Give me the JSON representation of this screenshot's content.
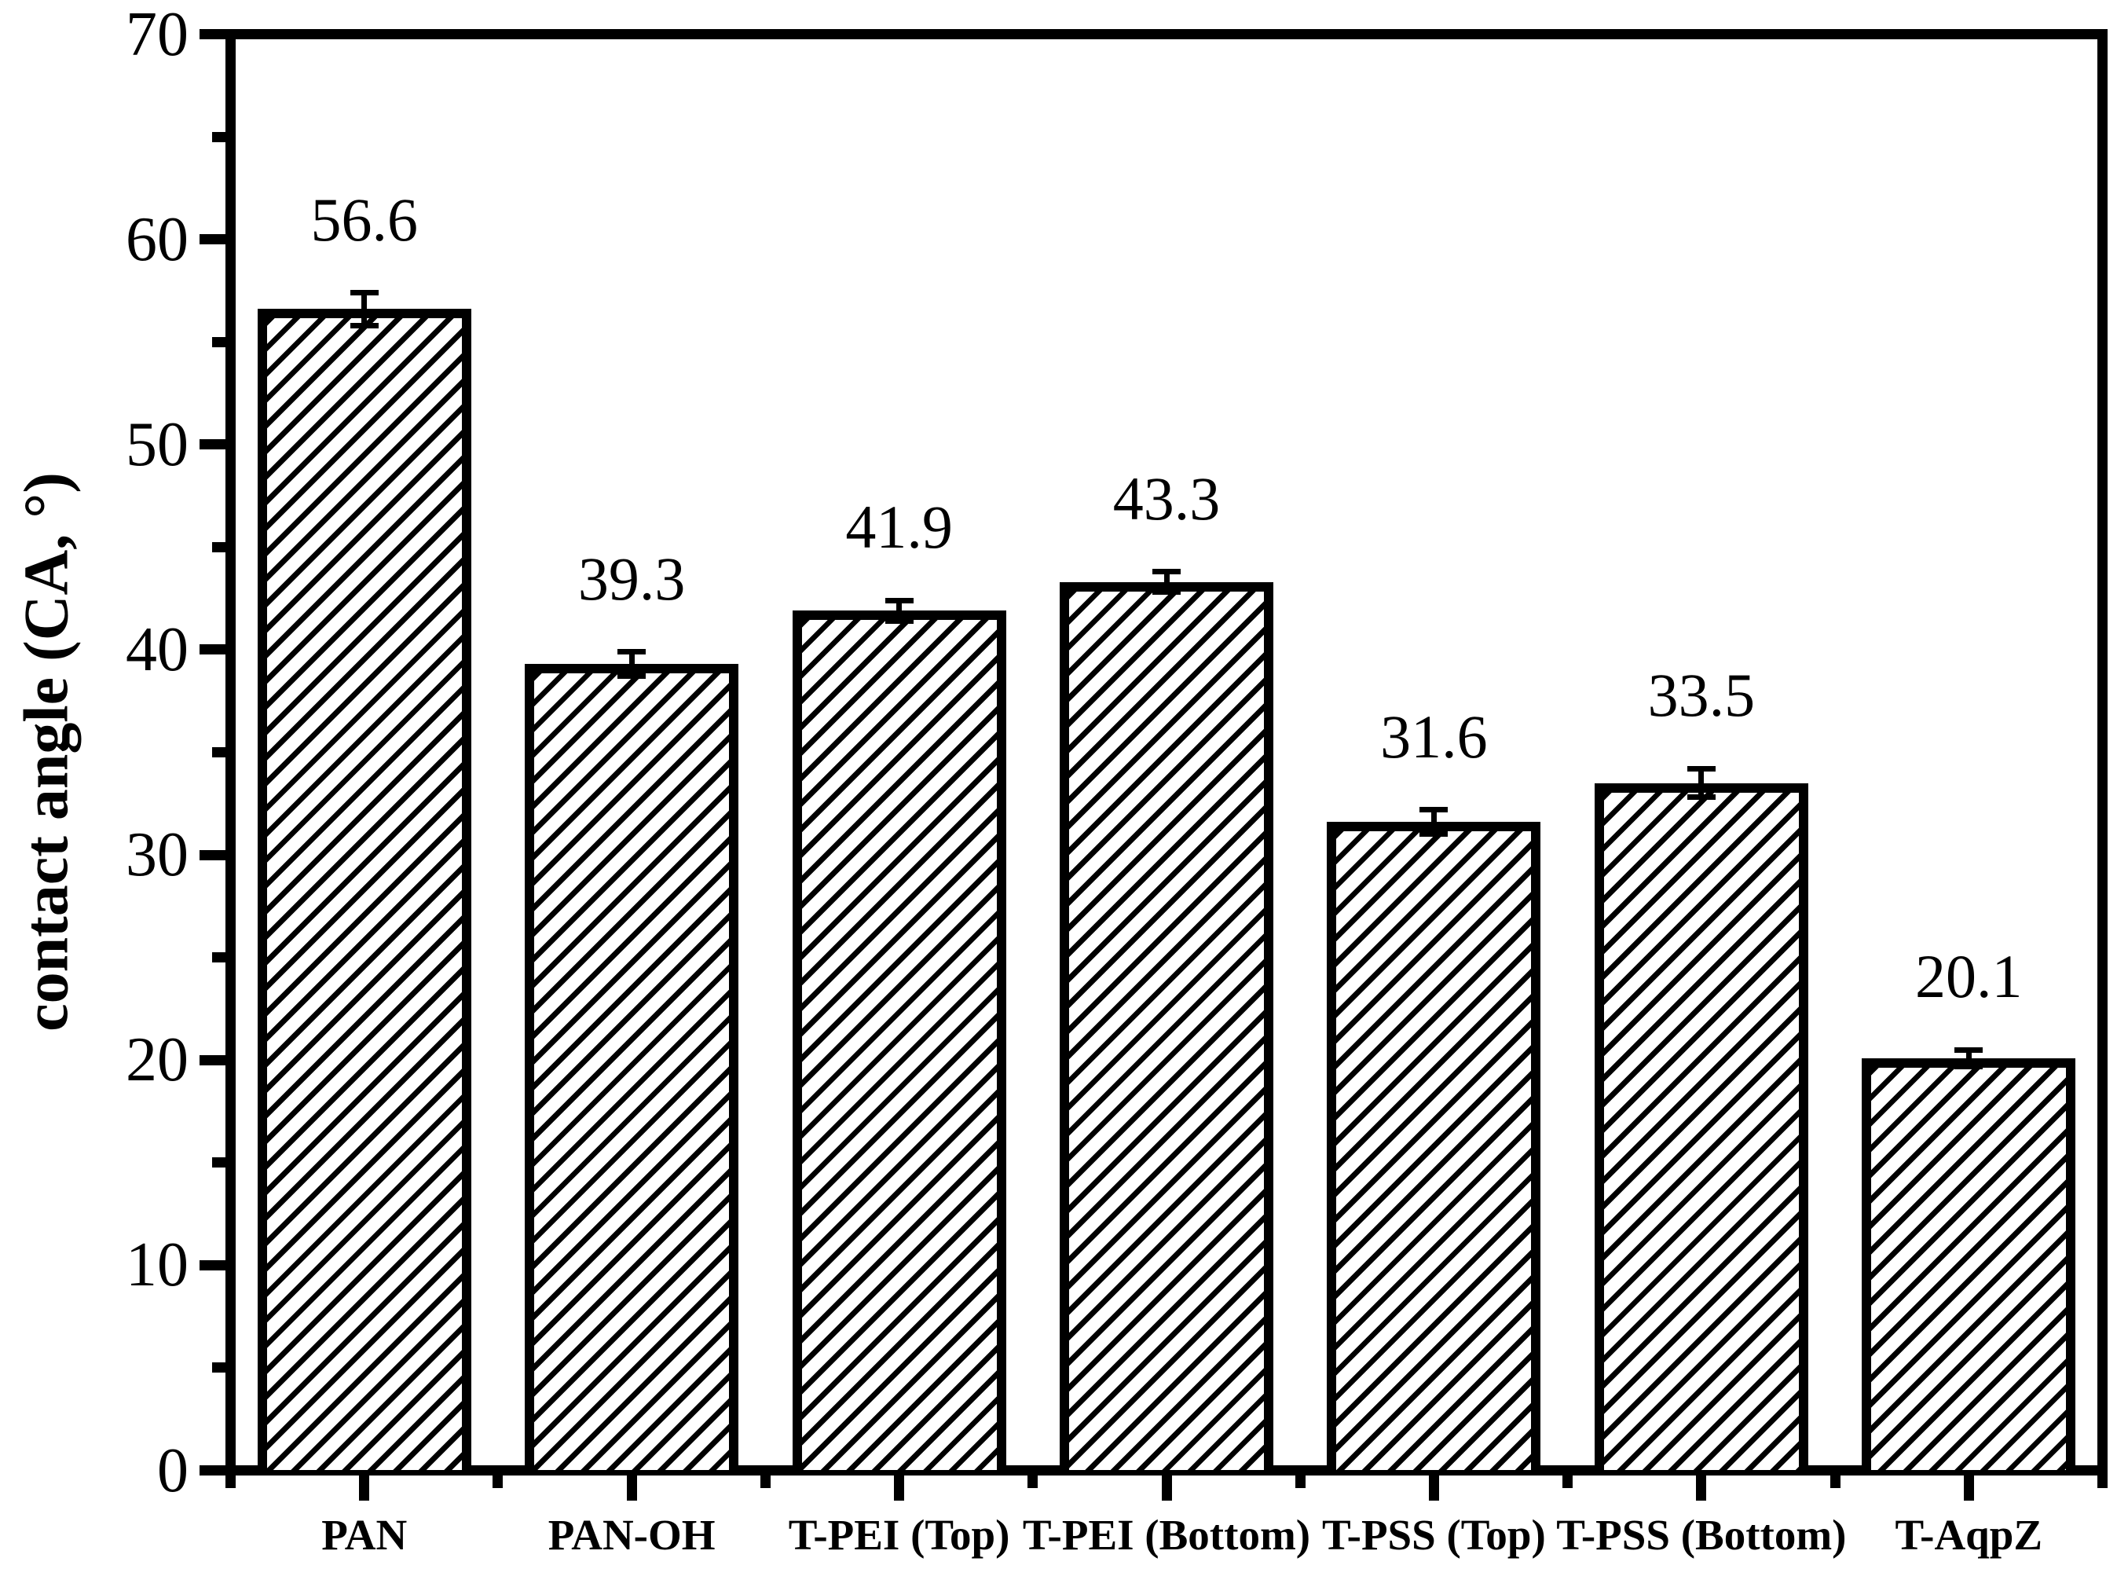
{
  "figure": {
    "background_color": "#ffffff",
    "frame_color": "#000000",
    "title": ""
  },
  "chart_data": {
    "type": "bar",
    "title": "",
    "ylabel": "contact angle (CA, °)",
    "xlabel": "",
    "categories": [
      "PAN",
      "PAN-OH",
      "T-PEI（Top）",
      "T-PEI（Bottom）",
      "T-PSS（Top）",
      "T-PSS（Bottom）",
      "T-AqpZ"
    ],
    "values": [
      56.6,
      39.3,
      41.9,
      43.3,
      31.6,
      33.5,
      20.1
    ],
    "value_labels": [
      "56.6",
      "39.3",
      "41.9",
      "43.3",
      "31.6",
      "33.5",
      "20.1"
    ],
    "errors": [
      0.8,
      0.6,
      0.5,
      0.5,
      0.6,
      0.7,
      0.4
    ],
    "ylim": [
      0,
      70
    ],
    "ytick_major_step": 10,
    "ytick_minor_step": 5,
    "ytick_labels": [
      "0",
      "10",
      "20",
      "30",
      "40",
      "50",
      "60",
      "70"
    ],
    "bar_fill_color": "#ffffff",
    "bar_edge_color": "#000000",
    "hatch_style": "diagonal-forward-slash",
    "hatch_color": "#000000",
    "error_bar_color": "#000000",
    "grid": false,
    "legend": null,
    "frame": "full-box"
  }
}
